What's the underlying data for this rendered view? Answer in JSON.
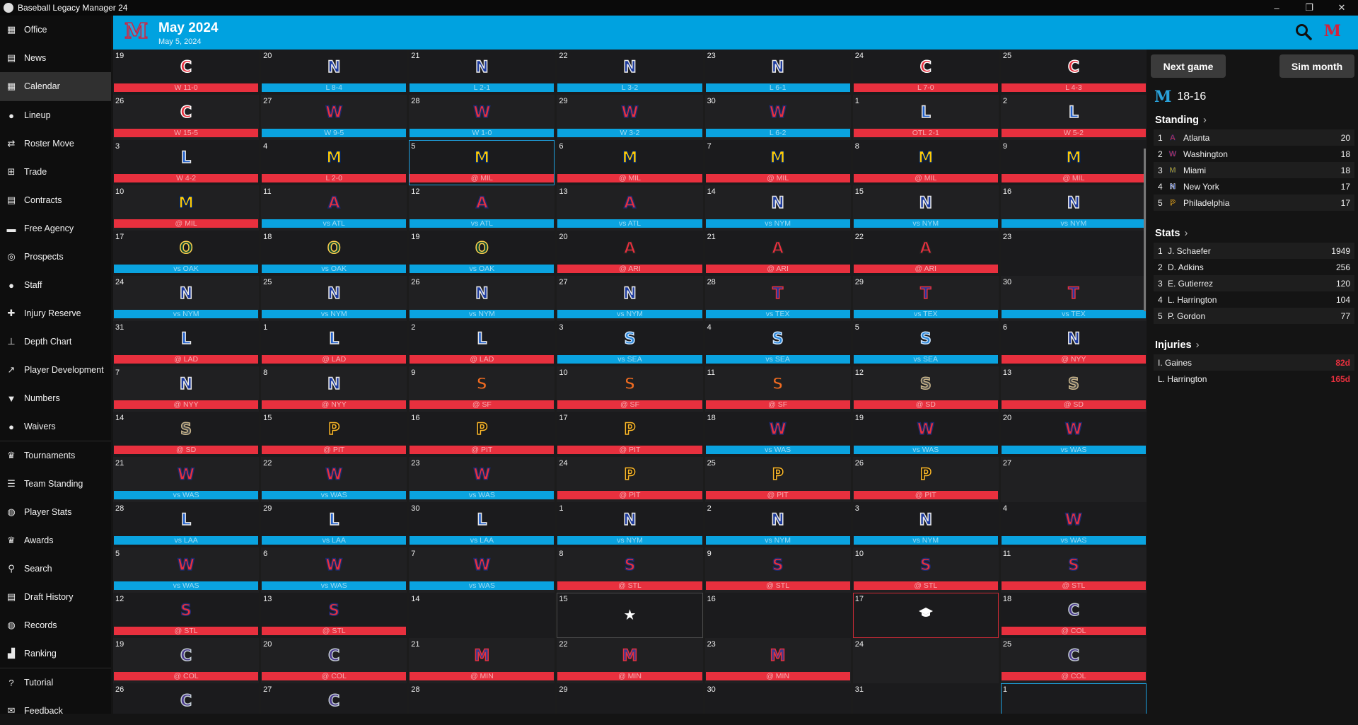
{
  "window": {
    "title": "Baseball Legacy Manager 24",
    "controls": [
      "–",
      "❐",
      "✕"
    ]
  },
  "sidebar": [
    {
      "key": "office",
      "label": "Office",
      "icon": "building-icon",
      "glyph": "▦"
    },
    {
      "key": "news",
      "label": "News",
      "icon": "newspaper-icon",
      "glyph": "▤"
    },
    {
      "key": "calendar",
      "label": "Calendar",
      "icon": "calendar-icon",
      "glyph": "▦",
      "active": true
    },
    {
      "sep": true
    },
    {
      "key": "lineup",
      "label": "Lineup",
      "icon": "users-icon",
      "glyph": "●"
    },
    {
      "key": "roster-move",
      "label": "Roster Move",
      "icon": "swap-icon",
      "glyph": "⇄"
    },
    {
      "key": "trade",
      "label": "Trade",
      "icon": "network-icon",
      "glyph": "⊞"
    },
    {
      "key": "contracts",
      "label": "Contracts",
      "icon": "document-icon",
      "glyph": "▤"
    },
    {
      "key": "free-agency",
      "label": "Free Agency",
      "icon": "money-icon",
      "glyph": "▬"
    },
    {
      "key": "prospects",
      "label": "Prospects",
      "icon": "binoculars-icon",
      "glyph": "◎"
    },
    {
      "key": "staff",
      "label": "Staff",
      "icon": "person-icon",
      "glyph": "●"
    },
    {
      "key": "injury-reserve",
      "label": "Injury Reserve",
      "icon": "injured-person-icon",
      "glyph": "✚"
    },
    {
      "key": "depth-chart",
      "label": "Depth Chart",
      "icon": "hierarchy-icon",
      "glyph": "⊥"
    },
    {
      "key": "player-development",
      "label": "Player Development",
      "icon": "chart-line-icon",
      "glyph": "↗"
    },
    {
      "key": "numbers",
      "label": "Numbers",
      "icon": "shirt-icon",
      "glyph": "▼"
    },
    {
      "key": "waivers",
      "label": "Waivers",
      "icon": "users-minus-icon",
      "glyph": "●"
    },
    {
      "sep": true
    },
    {
      "key": "tournaments",
      "label": "Tournaments",
      "icon": "trophy-icon",
      "glyph": "♛"
    },
    {
      "key": "team-standing",
      "label": "Team Standing",
      "icon": "list-icon",
      "glyph": "☰"
    },
    {
      "key": "player-stats",
      "label": "Player Stats",
      "icon": "baseball-icon",
      "glyph": "◍"
    },
    {
      "key": "awards",
      "label": "Awards",
      "icon": "award-icon",
      "glyph": "♛"
    },
    {
      "key": "search",
      "label": "Search",
      "icon": "search-icon",
      "glyph": "⚲"
    },
    {
      "key": "draft-history",
      "label": "Draft History",
      "icon": "clipboard-icon",
      "glyph": "▤"
    },
    {
      "key": "records",
      "label": "Records",
      "icon": "globe-icon",
      "glyph": "◍"
    },
    {
      "key": "ranking",
      "label": "Ranking",
      "icon": "bar-chart-icon",
      "glyph": "▟"
    },
    {
      "sep": true
    },
    {
      "key": "tutorial",
      "label": "Tutorial",
      "icon": "question-icon",
      "glyph": "?"
    },
    {
      "key": "feedback",
      "label": "Feedback",
      "icon": "chat-icon",
      "glyph": "✉"
    }
  ],
  "header": {
    "logo": "M",
    "month": "May 2024",
    "date": "May 5, 2024",
    "team_letter": "M"
  },
  "colors": {
    "accent": "#00a2e0",
    "loss_bar": "#e8303e",
    "home_bar": "#0aa3e0"
  },
  "teams": {
    "C": {
      "letter": "C",
      "fill": "#e8303e",
      "stroke": "#ffffff"
    },
    "N": {
      "letter": "N",
      "fill": "#1c3a9e",
      "stroke": "#e8e8e8"
    },
    "W": {
      "letter": "W",
      "fill": "#e8303e",
      "stroke": "#1c2a6e"
    },
    "L": {
      "letter": "L",
      "fill": "#1f5fcc",
      "stroke": "#e8e8e8"
    },
    "M": {
      "letter": "M",
      "fill": "#ffcb05",
      "stroke": "#00205b"
    },
    "A": {
      "letter": "A",
      "fill": "#e8303e",
      "stroke": "#1c2a6e"
    },
    "O": {
      "letter": "O",
      "fill": "#0f4a34",
      "stroke": "#ffd04d"
    },
    "AR": {
      "letter": "A",
      "fill": "#e8303e",
      "stroke": "#222222"
    },
    "T": {
      "letter": "T",
      "fill": "#1c3a9e",
      "stroke": "#e8303e"
    },
    "S": {
      "letter": "S",
      "fill": "#2a86d8",
      "stroke": "#cfe6ff"
    },
    "SF": {
      "letter": "S",
      "fill": "#f26b21",
      "stroke": "#222222"
    },
    "SD": {
      "letter": "S",
      "fill": "#4a4a4a",
      "stroke": "#c8b48a"
    },
    "P": {
      "letter": "P",
      "fill": "#111111",
      "stroke": "#fdb827"
    },
    "SL": {
      "letter": "S",
      "fill": "#e8303e",
      "stroke": "#1c2a6e"
    },
    "CO": {
      "letter": "C",
      "fill": "#4b3a8e",
      "stroke": "#c4ced4"
    },
    "MN": {
      "letter": "M",
      "fill": "#3a3a8e",
      "stroke": "#e8303e"
    }
  },
  "calendar": [
    {
      "d": "19",
      "t": "C",
      "r": "W 11-0",
      "c": "red"
    },
    {
      "d": "20",
      "t": "N",
      "r": "L 8-4",
      "c": "blue"
    },
    {
      "d": "21",
      "t": "N",
      "r": "L 2-1",
      "c": "blue"
    },
    {
      "d": "22",
      "t": "N",
      "r": "L 3-2",
      "c": "blue"
    },
    {
      "d": "23",
      "t": "N",
      "r": "L 6-1",
      "c": "blue"
    },
    {
      "d": "24",
      "t": "C",
      "r": "L 7-0",
      "c": "red"
    },
    {
      "d": "25",
      "t": "C",
      "r": "L 4-3",
      "c": "red"
    },
    {
      "d": "26",
      "t": "C",
      "r": "W 15-5",
      "c": "red"
    },
    {
      "d": "27",
      "t": "W",
      "r": "W 9-5",
      "c": "blue"
    },
    {
      "d": "28",
      "t": "W",
      "r": "W 1-0",
      "c": "blue"
    },
    {
      "d": "29",
      "t": "W",
      "r": "W 3-2",
      "c": "blue"
    },
    {
      "d": "30",
      "t": "W",
      "r": "L 6-2",
      "c": "blue"
    },
    {
      "d": "1",
      "t": "L",
      "r": "OTL 2-1",
      "c": "red"
    },
    {
      "d": "2",
      "t": "L",
      "r": "W 5-2",
      "c": "red"
    },
    {
      "d": "3",
      "t": "L",
      "r": "W 4-2",
      "c": "red"
    },
    {
      "d": "4",
      "t": "M",
      "r": "L 2-0",
      "c": "red"
    },
    {
      "d": "5",
      "t": "M",
      "r": "@ MIL",
      "c": "red",
      "sel": true
    },
    {
      "d": "6",
      "t": "M",
      "r": "@ MIL",
      "c": "red"
    },
    {
      "d": "7",
      "t": "M",
      "r": "@ MIL",
      "c": "red"
    },
    {
      "d": "8",
      "t": "M",
      "r": "@ MIL",
      "c": "red"
    },
    {
      "d": "9",
      "t": "M",
      "r": "@ MIL",
      "c": "red"
    },
    {
      "d": "10",
      "t": "M",
      "r": "@ MIL",
      "c": "red"
    },
    {
      "d": "11",
      "t": "A",
      "r": "vs ATL",
      "c": "blue"
    },
    {
      "d": "12",
      "t": "A",
      "r": "vs ATL",
      "c": "blue"
    },
    {
      "d": "13",
      "t": "A",
      "r": "vs ATL",
      "c": "blue"
    },
    {
      "d": "14",
      "t": "N",
      "r": "vs NYM",
      "c": "blue"
    },
    {
      "d": "15",
      "t": "N",
      "r": "vs NYM",
      "c": "blue"
    },
    {
      "d": "16",
      "t": "N",
      "r": "vs NYM",
      "c": "blue"
    },
    {
      "d": "17",
      "t": "O",
      "r": "vs OAK",
      "c": "blue"
    },
    {
      "d": "18",
      "t": "O",
      "r": "vs OAK",
      "c": "blue"
    },
    {
      "d": "19",
      "t": "O",
      "r": "vs OAK",
      "c": "blue"
    },
    {
      "d": "20",
      "t": "AR",
      "r": "@ ARI",
      "c": "red"
    },
    {
      "d": "21",
      "t": "AR",
      "r": "@ ARI",
      "c": "red"
    },
    {
      "d": "22",
      "t": "AR",
      "r": "@ ARI",
      "c": "red"
    },
    {
      "d": "23"
    },
    {
      "d": "24",
      "t": "N",
      "r": "vs NYM",
      "c": "blue"
    },
    {
      "d": "25",
      "t": "N",
      "r": "vs NYM",
      "c": "blue"
    },
    {
      "d": "26",
      "t": "N",
      "r": "vs NYM",
      "c": "blue"
    },
    {
      "d": "27",
      "t": "N",
      "r": "vs NYM",
      "c": "blue"
    },
    {
      "d": "28",
      "t": "T",
      "r": "vs TEX",
      "c": "blue"
    },
    {
      "d": "29",
      "t": "T",
      "r": "vs TEX",
      "c": "blue"
    },
    {
      "d": "30",
      "t": "T",
      "r": "vs TEX",
      "c": "blue"
    },
    {
      "d": "31",
      "t": "L",
      "r": "@ LAD",
      "c": "red"
    },
    {
      "d": "1",
      "t": "L",
      "r": "@ LAD",
      "c": "red"
    },
    {
      "d": "2",
      "t": "L",
      "r": "@ LAD",
      "c": "red"
    },
    {
      "d": "3",
      "t": "S",
      "r": "vs SEA",
      "c": "blue"
    },
    {
      "d": "4",
      "t": "S",
      "r": "vs SEA",
      "c": "blue"
    },
    {
      "d": "5",
      "t": "S",
      "r": "vs SEA",
      "c": "blue"
    },
    {
      "d": "6",
      "t": "N",
      "r": "@ NYY",
      "c": "red"
    },
    {
      "d": "7",
      "t": "N",
      "r": "@ NYY",
      "c": "red"
    },
    {
      "d": "8",
      "t": "N",
      "r": "@ NYY",
      "c": "red"
    },
    {
      "d": "9",
      "t": "SF",
      "r": "@ SF",
      "c": "red"
    },
    {
      "d": "10",
      "t": "SF",
      "r": "@ SF",
      "c": "red"
    },
    {
      "d": "11",
      "t": "SF",
      "r": "@ SF",
      "c": "red"
    },
    {
      "d": "12",
      "t": "SD",
      "r": "@ SD",
      "c": "red"
    },
    {
      "d": "13",
      "t": "SD",
      "r": "@ SD",
      "c": "red"
    },
    {
      "d": "14",
      "t": "SD",
      "r": "@ SD",
      "c": "red"
    },
    {
      "d": "15",
      "t": "P",
      "r": "@ PIT",
      "c": "red"
    },
    {
      "d": "16",
      "t": "P",
      "r": "@ PIT",
      "c": "red"
    },
    {
      "d": "17",
      "t": "P",
      "r": "@ PIT",
      "c": "red"
    },
    {
      "d": "18",
      "t": "W",
      "r": "vs WAS",
      "c": "blue"
    },
    {
      "d": "19",
      "t": "W",
      "r": "vs WAS",
      "c": "blue"
    },
    {
      "d": "20",
      "t": "W",
      "r": "vs WAS",
      "c": "blue"
    },
    {
      "d": "21",
      "t": "W",
      "r": "vs WAS",
      "c": "blue"
    },
    {
      "d": "22",
      "t": "W",
      "r": "vs WAS",
      "c": "blue"
    },
    {
      "d": "23",
      "t": "W",
      "r": "vs WAS",
      "c": "blue"
    },
    {
      "d": "24",
      "t": "P",
      "r": "@ PIT",
      "c": "red"
    },
    {
      "d": "25",
      "t": "P",
      "r": "@ PIT",
      "c": "red"
    },
    {
      "d": "26",
      "t": "P",
      "r": "@ PIT",
      "c": "red"
    },
    {
      "d": "27"
    },
    {
      "d": "28",
      "t": "L",
      "r": "vs LAA",
      "c": "blue"
    },
    {
      "d": "29",
      "t": "L",
      "r": "vs LAA",
      "c": "blue"
    },
    {
      "d": "30",
      "t": "L",
      "r": "vs LAA",
      "c": "blue"
    },
    {
      "d": "1",
      "t": "N",
      "r": "vs NYM",
      "c": "blue"
    },
    {
      "d": "2",
      "t": "N",
      "r": "vs NYM",
      "c": "blue"
    },
    {
      "d": "3",
      "t": "N",
      "r": "vs NYM",
      "c": "blue"
    },
    {
      "d": "4",
      "t": "W",
      "r": "vs WAS",
      "c": "blue"
    },
    {
      "d": "5",
      "t": "W",
      "r": "vs WAS",
      "c": "blue"
    },
    {
      "d": "6",
      "t": "W",
      "r": "vs WAS",
      "c": "blue"
    },
    {
      "d": "7",
      "t": "W",
      "r": "vs WAS",
      "c": "blue"
    },
    {
      "d": "8",
      "t": "SL",
      "r": "@ STL",
      "c": "red"
    },
    {
      "d": "9",
      "t": "SL",
      "r": "@ STL",
      "c": "red"
    },
    {
      "d": "10",
      "t": "SL",
      "r": "@ STL",
      "c": "red"
    },
    {
      "d": "11",
      "t": "SL",
      "r": "@ STL",
      "c": "red"
    },
    {
      "d": "12",
      "t": "SL",
      "r": "@ STL",
      "c": "red"
    },
    {
      "d": "13",
      "t": "SL",
      "r": "@ STL",
      "c": "red"
    },
    {
      "d": "14"
    },
    {
      "d": "15",
      "ev": "star",
      "b": "ev1"
    },
    {
      "d": "16"
    },
    {
      "d": "17",
      "ev": "cap",
      "b": "ev2"
    },
    {
      "d": "18",
      "t": "CO",
      "r": "@ COL",
      "c": "red"
    },
    {
      "d": "19",
      "t": "CO",
      "r": "@ COL",
      "c": "red"
    },
    {
      "d": "20",
      "t": "CO",
      "r": "@ COL",
      "c": "red"
    },
    {
      "d": "21",
      "t": "MN",
      "r": "@ MIN",
      "c": "red"
    },
    {
      "d": "22",
      "t": "MN",
      "r": "@ MIN",
      "c": "red"
    },
    {
      "d": "23",
      "t": "MN",
      "r": "@ MIN",
      "c": "red"
    },
    {
      "d": "24"
    },
    {
      "d": "25",
      "t": "CO",
      "r": "@ COL",
      "c": "red"
    },
    {
      "d": "26",
      "t": "CO"
    },
    {
      "d": "27",
      "t": "CO"
    },
    {
      "d": "28"
    },
    {
      "d": "29"
    },
    {
      "d": "30"
    },
    {
      "d": "31"
    },
    {
      "d": "1",
      "sel": true
    }
  ],
  "right": {
    "next_game": "Next game",
    "sim_month": "Sim month",
    "record": "18-16",
    "standing_title": "Standing",
    "standing": [
      {
        "rank": "1",
        "team": "A",
        "name": "Atlanta",
        "value": "20"
      },
      {
        "rank": "2",
        "team": "W",
        "name": "Washington",
        "value": "18"
      },
      {
        "rank": "3",
        "team": "M",
        "name": "Miami",
        "value": "18"
      },
      {
        "rank": "4",
        "team": "N",
        "name": "New York",
        "value": "17"
      },
      {
        "rank": "5",
        "team": "P",
        "name": "Philadelphia",
        "value": "17"
      }
    ],
    "stats_title": "Stats",
    "stats": [
      {
        "rank": "1",
        "name": "J. Schaefer",
        "value": "1949"
      },
      {
        "rank": "2",
        "name": "D. Adkins",
        "value": "256"
      },
      {
        "rank": "3",
        "name": "E. Gutierrez",
        "value": "120"
      },
      {
        "rank": "4",
        "name": "L. Harrington",
        "value": "104"
      },
      {
        "rank": "5",
        "name": "P. Gordon",
        "value": "77"
      }
    ],
    "injuries_title": "Injuries",
    "injuries": [
      {
        "name": "I. Gaines",
        "value": "82d"
      },
      {
        "name": "L. Harrington",
        "value": "165d"
      }
    ]
  }
}
